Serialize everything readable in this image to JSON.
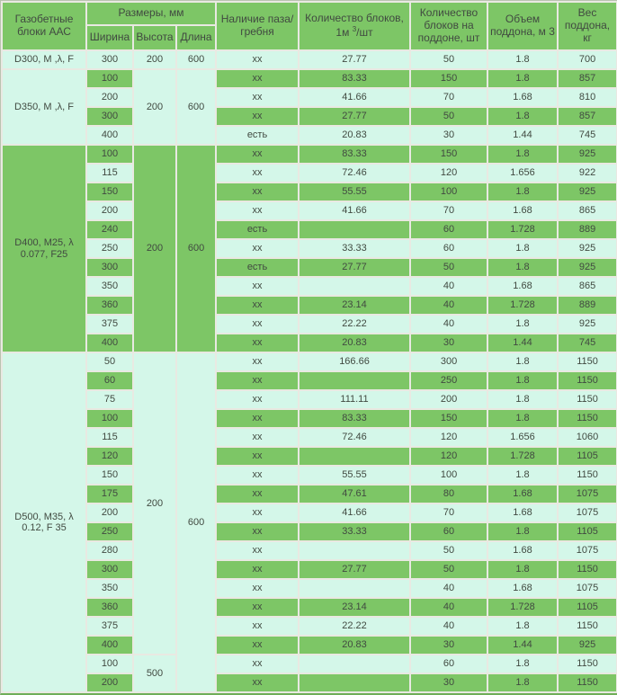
{
  "colors": {
    "row_green": "#7dc666",
    "row_light": "#d4f7e9",
    "text": "#414a41",
    "grid_gap": "#e9e9e2"
  },
  "chart_data": {
    "type": "table",
    "header": {
      "blocks": "Газобетные блоки ААС",
      "sizes_group": "Размеры, мм",
      "width": "Ширина",
      "height": "Высота",
      "length": "Длина",
      "groove": "Наличие паза/гребня",
      "qty_m3_prefix": "Количество блоков, 1м ",
      "qty_m3_sup": "3",
      "qty_m3_suffix": "/шт",
      "qty_pallet": "Количество блоков на поддоне, шт",
      "volume": "Объем поддона, м 3",
      "weight": "Вес поддона, кг"
    },
    "groups": [
      {
        "label": "D300, М ,λ, F",
        "tone": "light",
        "heights": [
          {
            "value": "200",
            "rows": 1
          }
        ],
        "length": {
          "value": "600",
          "rows": 1
        },
        "rows": [
          {
            "w": "300",
            "groove": "хх",
            "m3": "27.77",
            "pallet": "50",
            "vol": "1.8",
            "wt": "700"
          }
        ]
      },
      {
        "label": "D350, М ,λ, F",
        "tone": "light",
        "heights": [
          {
            "value": "200",
            "rows": 4
          }
        ],
        "length": {
          "value": "600",
          "rows": 4
        },
        "rows": [
          {
            "w": "100",
            "groove": "хх",
            "m3": "83.33",
            "pallet": "150",
            "vol": "1.8",
            "wt": "857"
          },
          {
            "w": "200",
            "groove": "хх",
            "m3": "41.66",
            "pallet": "70",
            "vol": "1.68",
            "wt": "810"
          },
          {
            "w": "300",
            "groove": "хх",
            "m3": "27.77",
            "pallet": "50",
            "vol": "1.8",
            "wt": "857"
          },
          {
            "w": "400",
            "groove": "есть",
            "m3": "20.83",
            "pallet": "30",
            "vol": "1.44",
            "wt": "745"
          }
        ]
      },
      {
        "label": "D400, М25, λ 0.077, F25",
        "tone": "green",
        "heights": [
          {
            "value": "200",
            "rows": 11
          }
        ],
        "length": {
          "value": "600",
          "rows": 11
        },
        "rows": [
          {
            "w": "100",
            "groove": "хх",
            "m3": "83.33",
            "pallet": "150",
            "vol": "1.8",
            "wt": "925"
          },
          {
            "w": "115",
            "groove": "хх",
            "m3": "72.46",
            "pallet": "120",
            "vol": "1.656",
            "wt": "922"
          },
          {
            "w": "150",
            "groove": "хх",
            "m3": "55.55",
            "pallet": "100",
            "vol": "1.8",
            "wt": "925"
          },
          {
            "w": "200",
            "groove": "хх",
            "m3": "41.66",
            "pallet": "70",
            "vol": "1.68",
            "wt": "865"
          },
          {
            "w": "240",
            "groove": "есть",
            "m3": "",
            "pallet": "60",
            "vol": "1.728",
            "wt": "889"
          },
          {
            "w": "250",
            "groove": "хх",
            "m3": "33.33",
            "pallet": "60",
            "vol": "1.8",
            "wt": "925"
          },
          {
            "w": "300",
            "groove": "есть",
            "m3": "27.77",
            "pallet": "50",
            "vol": "1.8",
            "wt": "925"
          },
          {
            "w": "350",
            "groove": "хх",
            "m3": "",
            "pallet": "40",
            "vol": "1.68",
            "wt": "865"
          },
          {
            "w": "360",
            "groove": "хх",
            "m3": "23.14",
            "pallet": "40",
            "vol": "1.728",
            "wt": "889"
          },
          {
            "w": "375",
            "groove": "хх",
            "m3": "22.22",
            "pallet": "40",
            "vol": "1.8",
            "wt": "925"
          },
          {
            "w": "400",
            "groove": "хх",
            "m3": "20.83",
            "pallet": "30",
            "vol": "1.44",
            "wt": "745"
          }
        ]
      },
      {
        "label": "D500, М35, λ 0.12, F 35",
        "tone": "light",
        "heights": [
          {
            "value": "200",
            "rows": 16
          },
          {
            "value": "500",
            "rows": 2
          }
        ],
        "length": {
          "value": "600",
          "rows": 18
        },
        "rows": [
          {
            "w": "50",
            "groove": "хх",
            "m3": "166.66",
            "pallet": "300",
            "vol": "1.8",
            "wt": "1150"
          },
          {
            "w": "60",
            "groove": "хх",
            "m3": "",
            "pallet": "250",
            "vol": "1.8",
            "wt": "1150"
          },
          {
            "w": "75",
            "groove": "хх",
            "m3": "111.11",
            "pallet": "200",
            "vol": "1.8",
            "wt": "1150"
          },
          {
            "w": "100",
            "groove": "хх",
            "m3": "83.33",
            "pallet": "150",
            "vol": "1.8",
            "wt": "1150"
          },
          {
            "w": "115",
            "groove": "хх",
            "m3": "72.46",
            "pallet": "120",
            "vol": "1.656",
            "wt": "1060"
          },
          {
            "w": "120",
            "groove": "хх",
            "m3": "",
            "pallet": "120",
            "vol": "1.728",
            "wt": "1105"
          },
          {
            "w": "150",
            "groove": "хх",
            "m3": "55.55",
            "pallet": "100",
            "vol": "1.8",
            "wt": "1150"
          },
          {
            "w": "175",
            "groove": "хх",
            "m3": "47.61",
            "pallet": "80",
            "vol": "1.68",
            "wt": "1075"
          },
          {
            "w": "200",
            "groove": "хх",
            "m3": "41.66",
            "pallet": "70",
            "vol": "1.68",
            "wt": "1075"
          },
          {
            "w": "250",
            "groove": "хх",
            "m3": "33.33",
            "pallet": "60",
            "vol": "1.8",
            "wt": "1105"
          },
          {
            "w": "280",
            "groove": "хх",
            "m3": "",
            "pallet": "50",
            "vol": "1.68",
            "wt": "1075"
          },
          {
            "w": "300",
            "groove": "хх",
            "m3": "27.77",
            "pallet": "50",
            "vol": "1.8",
            "wt": "1150"
          },
          {
            "w": "350",
            "groove": "хх",
            "m3": "",
            "pallet": "40",
            "vol": "1.68",
            "wt": "1075"
          },
          {
            "w": "360",
            "groove": "хх",
            "m3": "23.14",
            "pallet": "40",
            "vol": "1.728",
            "wt": "1105"
          },
          {
            "w": "375",
            "groove": "хх",
            "m3": "22.22",
            "pallet": "40",
            "vol": "1.8",
            "wt": "1150"
          },
          {
            "w": "400",
            "groove": "хх",
            "m3": "20.83",
            "pallet": "30",
            "vol": "1.44",
            "wt": "925"
          },
          {
            "w": "100",
            "groove": "хх",
            "m3": "",
            "pallet": "60",
            "vol": "1.8",
            "wt": "1150"
          },
          {
            "w": "200",
            "groove": "хх",
            "m3": "",
            "pallet": "30",
            "vol": "1.8",
            "wt": "1150"
          }
        ]
      }
    ]
  }
}
